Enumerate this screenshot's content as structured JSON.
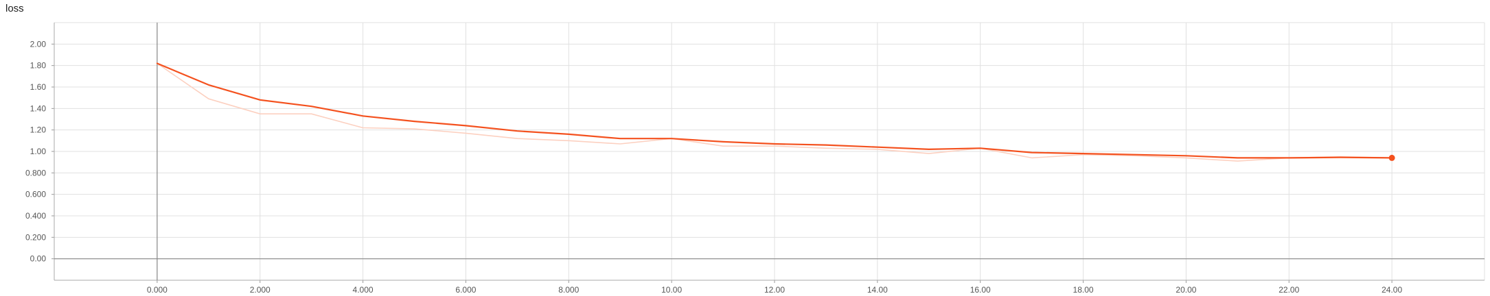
{
  "chart_data": {
    "type": "line",
    "title": "loss",
    "xlabel": "",
    "ylabel": "",
    "xlim": [
      -2,
      25.8
    ],
    "ylim": [
      -0.2,
      2.2
    ],
    "grid": true,
    "x_ticks": [
      0,
      2,
      4,
      6,
      8,
      10,
      12,
      14,
      16,
      18,
      20,
      22,
      24
    ],
    "x_tick_labels": [
      "0.000",
      "2.000",
      "4.000",
      "6.000",
      "8.000",
      "10.00",
      "12.00",
      "14.00",
      "16.00",
      "18.00",
      "20.00",
      "22.00",
      "24.00"
    ],
    "y_ticks": [
      0,
      0.2,
      0.4,
      0.6,
      0.8,
      1.0,
      1.2,
      1.4,
      1.6,
      1.8,
      2.0
    ],
    "y_tick_labels": [
      "0.00",
      "0.200",
      "0.400",
      "0.600",
      "0.800",
      "1.00",
      "1.20",
      "1.40",
      "1.60",
      "1.80",
      "2.00"
    ],
    "series": [
      {
        "role": "raw",
        "color": "#fcd0c0",
        "x": [
          0,
          1,
          2,
          3,
          4,
          5,
          6,
          7,
          8,
          9,
          10,
          11,
          12,
          13,
          14,
          15,
          16,
          17,
          18,
          19,
          20,
          21,
          22,
          23,
          24
        ],
        "y": [
          1.82,
          1.49,
          1.35,
          1.35,
          1.22,
          1.21,
          1.17,
          1.12,
          1.1,
          1.07,
          1.12,
          1.05,
          1.05,
          1.03,
          1.02,
          0.98,
          1.03,
          0.94,
          0.97,
          0.96,
          0.94,
          0.91,
          0.94,
          0.95,
          0.94
        ]
      },
      {
        "role": "smoothed",
        "color": "#f4511e",
        "x": [
          0,
          1,
          2,
          3,
          4,
          5,
          6,
          7,
          8,
          9,
          10,
          11,
          12,
          13,
          14,
          15,
          16,
          17,
          18,
          19,
          20,
          21,
          22,
          23,
          24
        ],
        "y": [
          1.82,
          1.62,
          1.48,
          1.42,
          1.33,
          1.28,
          1.24,
          1.19,
          1.16,
          1.12,
          1.12,
          1.09,
          1.07,
          1.06,
          1.04,
          1.02,
          1.03,
          0.99,
          0.98,
          0.97,
          0.96,
          0.94,
          0.94,
          0.945,
          0.94
        ]
      }
    ],
    "last_point_marker": true
  }
}
